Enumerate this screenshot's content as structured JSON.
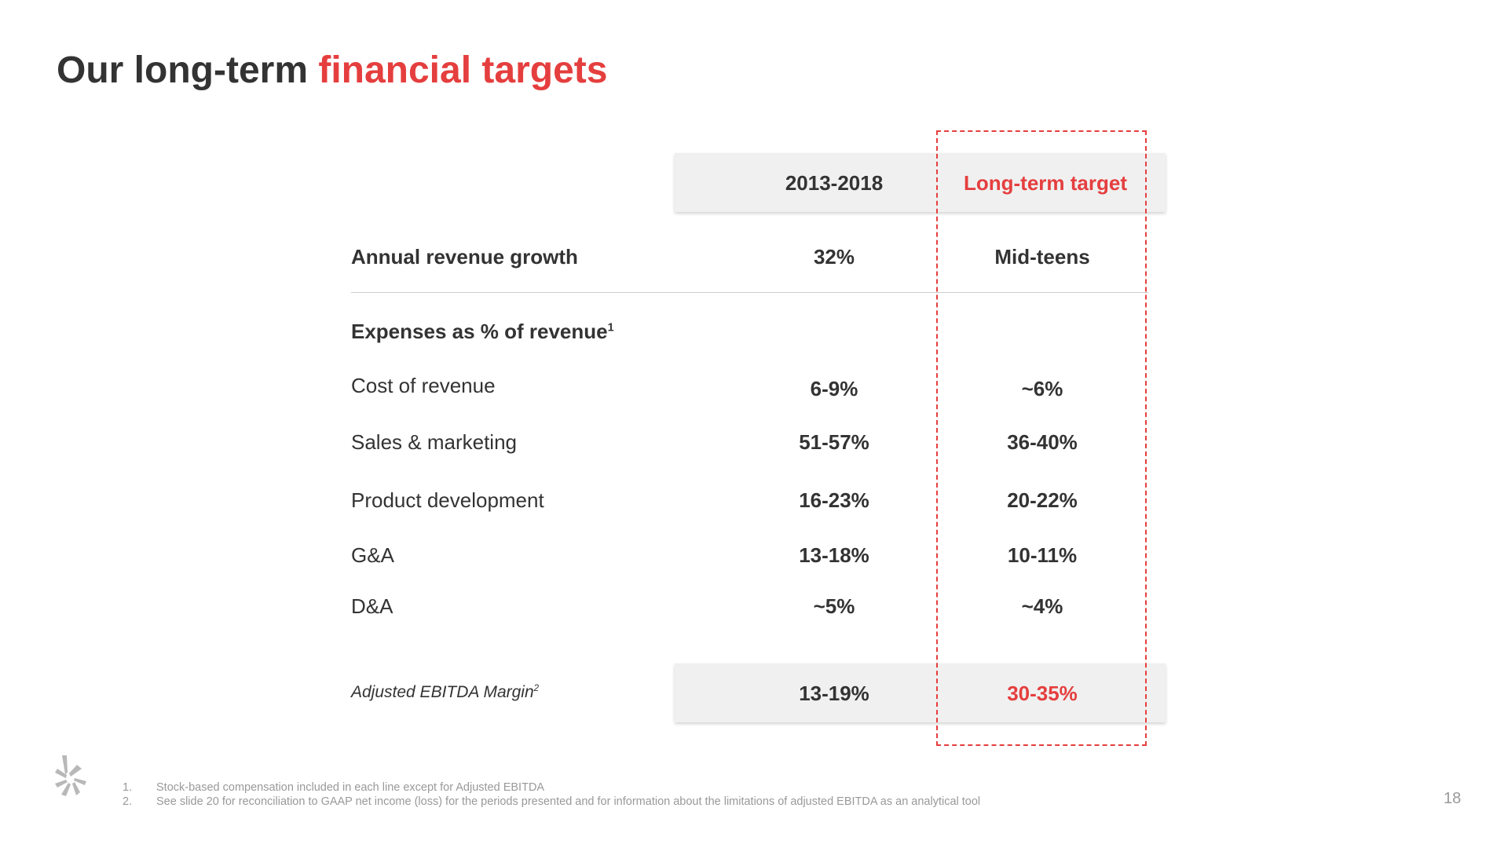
{
  "title": {
    "prefix": "Our long-term ",
    "highlight": "financial targets"
  },
  "columns": {
    "period": "2013-2018",
    "target": "Long-term target"
  },
  "revenue_growth": {
    "label": "Annual revenue growth",
    "period": "32%",
    "target": "Mid-teens"
  },
  "expenses": {
    "label": "Expenses as % of revenue",
    "footnote_marker": "1",
    "rows": [
      {
        "label": "Cost of revenue",
        "period": "6-9%",
        "target": "~6%"
      },
      {
        "label": "Sales & marketing",
        "period": "51-57%",
        "target": "36-40%"
      },
      {
        "label": "Product development",
        "period": "16-23%",
        "target": "20-22%"
      },
      {
        "label": "G&A",
        "period": "13-18%",
        "target": "10-11%"
      },
      {
        "label": "D&A",
        "period": "~5%",
        "target": "~4%"
      }
    ]
  },
  "ebitda": {
    "label": "Adjusted EBITDA  Margin",
    "footnote_marker": "2",
    "period": "13-19%",
    "target": "30-35%"
  },
  "footnotes": [
    {
      "num": "1.",
      "text": "Stock-based compensation included in each line except for Adjusted EBITDA"
    },
    {
      "num": "2.",
      "text": "See slide 20 for reconciliation to GAAP net income (loss) for the periods presented and for information about the limitations of adjusted EBITDA as an analytical tool"
    }
  ],
  "page_number": "18",
  "logo": {
    "icon": "yelp-burst-icon",
    "color": "#b8b8b8"
  },
  "colors": {
    "accent": "#e53e3e",
    "text": "#333333",
    "muted": "#999999",
    "header_bg": "#f0f0f0"
  }
}
